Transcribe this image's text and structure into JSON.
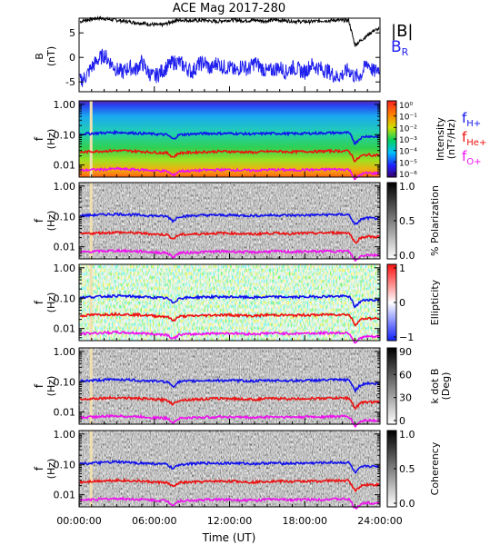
{
  "figure": {
    "title": "ACE Mag 2017-280",
    "xlabel": "Time (UT)",
    "xticks": [
      "00:00:00",
      "06:00:00",
      "12:00:00",
      "18:00:00",
      "24:00:00"
    ],
    "freq_ticks": [
      "1.00",
      "0.10",
      "0.01"
    ],
    "freq_ylabel_top": "f",
    "freq_ylabel_unit": "(Hz)"
  },
  "colors": {
    "H": "#1010ee",
    "He": "#ee1010",
    "O": "#ee10ee",
    "B": "#000000",
    "BR": "#2020ee",
    "marker": "#f0e0b0"
  },
  "mag_panel": {
    "ylabel": "B",
    "yunit": "(nT)",
    "yticks": [
      "5",
      "0",
      "-5"
    ],
    "legend_B": "|B|",
    "legend_BR": "B",
    "legend_BR_sub": "R"
  },
  "freq_legend": [
    {
      "main": "f",
      "sub": "H+"
    },
    {
      "main": "f",
      "sub": "He+"
    },
    {
      "main": "f",
      "sub": "O+"
    }
  ],
  "panels": [
    {
      "colorbar_label": "Intensity",
      "colorbar_label2": "(nT²/Hz)",
      "colorbar_ticks": [
        "10⁰",
        "10⁻¹",
        "10⁻²",
        "10⁻³",
        "10⁻⁴",
        "10⁻⁵",
        "10⁻⁶"
      ]
    },
    {
      "colorbar_label": "% Polarization",
      "colorbar_label2": "",
      "colorbar_ticks": [
        "1.0",
        "0.5",
        "0.0"
      ]
    },
    {
      "colorbar_label": "Ellipticity",
      "colorbar_label2": "",
      "colorbar_ticks": [
        "1",
        "0",
        "−1"
      ]
    },
    {
      "colorbar_label": "k dot B",
      "colorbar_label2": "(Deg)",
      "colorbar_ticks": [
        "90",
        "60",
        "30",
        "0"
      ]
    },
    {
      "colorbar_label": "Coherency",
      "colorbar_label2": "",
      "colorbar_ticks": [
        "1.0",
        "0.5",
        "0.0"
      ]
    }
  ],
  "chart_data": {
    "type": "line",
    "title": "ACE Mag 2017-280",
    "x_range_hours": [
      0,
      24
    ],
    "mag": {
      "ylim": [
        -7,
        8
      ],
      "series": [
        {
          "name": "|B|",
          "x": [
            0,
            0.5,
            1,
            1.5,
            2,
            2.5,
            3,
            3.5,
            4,
            4.5,
            5,
            5.5,
            6,
            6.5,
            7,
            7.5,
            8,
            8.5,
            9,
            9.5,
            10,
            10.5,
            11,
            11.5,
            12,
            12.5,
            13,
            13.5,
            14,
            14.5,
            15,
            15.5,
            16,
            16.5,
            17,
            17.5,
            18,
            18.5,
            19,
            19.5,
            20,
            20.5,
            21,
            21.5,
            22,
            22.5,
            23,
            23.5,
            24
          ],
          "values": [
            7.2,
            7.6,
            7.8,
            8.0,
            7.9,
            7.7,
            7.6,
            7.4,
            7.3,
            7.1,
            7.0,
            6.8,
            6.7,
            6.6,
            6.9,
            7.4,
            7.6,
            7.6,
            7.5,
            7.5,
            7.6,
            7.4,
            7.3,
            7.5,
            7.6,
            7.6,
            7.5,
            7.5,
            7.6,
            7.5,
            7.4,
            7.6,
            7.6,
            7.5,
            7.4,
            7.3,
            7.3,
            7.3,
            7.4,
            7.5,
            7.5,
            7.6,
            7.5,
            7.6,
            2.5,
            3.5,
            4.5,
            5.5,
            5.8
          ]
        },
        {
          "name": "B_R",
          "x": [
            0,
            0.5,
            1,
            1.5,
            2,
            2.5,
            3,
            3.5,
            4,
            4.5,
            5,
            5.5,
            6,
            6.5,
            7,
            7.5,
            8,
            8.5,
            9,
            9.5,
            10,
            10.5,
            11,
            11.5,
            12,
            12.5,
            13,
            13.5,
            14,
            14.5,
            15,
            15.5,
            16,
            16.5,
            17,
            17.5,
            18,
            18.5,
            19,
            19.5,
            20,
            20.5,
            21,
            21.5,
            22,
            22.5,
            23,
            23.5,
            24
          ],
          "values": [
            -5.0,
            -4.0,
            -2.0,
            -0.5,
            0.5,
            -1.0,
            -2.5,
            -3.0,
            -2.0,
            -2.5,
            -1.0,
            -3.0,
            -4.0,
            -3.0,
            -2.0,
            -1.0,
            -1.0,
            -2.0,
            -3.0,
            -1.5,
            -1.0,
            -2.5,
            -1.0,
            -2.0,
            -2.0,
            -3.0,
            -1.5,
            -2.5,
            -1.0,
            -2.0,
            -3.0,
            -2.5,
            -2.0,
            -3.0,
            -2.0,
            -2.5,
            -3.0,
            -1.5,
            -2.0,
            -2.5,
            -3.0,
            -4.0,
            -3.5,
            -2.5,
            -4.0,
            -3.5,
            -1.0,
            -3.0,
            -2.0
          ]
        }
      ]
    },
    "frequency_lines": {
      "ylim_hz": [
        0.004,
        1.3
      ],
      "y_scale": "log",
      "x": [
        0,
        1,
        2,
        3,
        4,
        5,
        6,
        7,
        7.5,
        8,
        9,
        10,
        11,
        12,
        13,
        14,
        15,
        16,
        17,
        18,
        19,
        20,
        21,
        21.5,
        22,
        22.5,
        23,
        23.5,
        24
      ],
      "series": [
        {
          "name": "f_H+",
          "values": [
            0.105,
            0.11,
            0.115,
            0.12,
            0.115,
            0.11,
            0.105,
            0.1,
            0.07,
            0.1,
            0.105,
            0.11,
            0.11,
            0.11,
            0.108,
            0.105,
            0.11,
            0.11,
            0.108,
            0.11,
            0.112,
            0.115,
            0.115,
            0.115,
            0.05,
            0.08,
            0.09,
            0.085,
            0.09
          ]
        },
        {
          "name": "f_He+",
          "values": [
            0.026,
            0.028,
            0.029,
            0.03,
            0.029,
            0.028,
            0.026,
            0.025,
            0.018,
            0.025,
            0.026,
            0.027,
            0.028,
            0.028,
            0.027,
            0.026,
            0.028,
            0.028,
            0.027,
            0.028,
            0.028,
            0.029,
            0.029,
            0.029,
            0.013,
            0.02,
            0.022,
            0.021,
            0.022
          ]
        },
        {
          "name": "f_O+",
          "values": [
            0.0066,
            0.007,
            0.0072,
            0.0075,
            0.0072,
            0.007,
            0.0066,
            0.0063,
            0.0045,
            0.0063,
            0.0065,
            0.0068,
            0.007,
            0.007,
            0.0068,
            0.0066,
            0.007,
            0.007,
            0.0068,
            0.007,
            0.007,
            0.0072,
            0.0072,
            0.0072,
            0.0033,
            0.005,
            0.0055,
            0.0053,
            0.0055
          ]
        }
      ]
    },
    "legend_position": "right"
  }
}
